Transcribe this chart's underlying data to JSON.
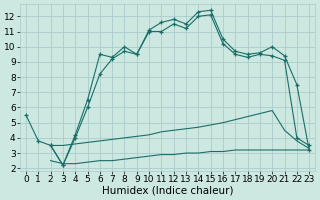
{
  "xlabel": "Humidex (Indice chaleur)",
  "bg_color": "#cce8e0",
  "grid_color": "#aacccc",
  "line_color": "#1a6e68",
  "xlim": [
    -0.5,
    23.5
  ],
  "ylim": [
    1.8,
    12.8
  ],
  "xticks": [
    0,
    1,
    2,
    3,
    4,
    5,
    6,
    7,
    8,
    9,
    10,
    11,
    12,
    13,
    14,
    15,
    16,
    17,
    18,
    19,
    20,
    21,
    22,
    23
  ],
  "yticks": [
    2,
    3,
    4,
    5,
    6,
    7,
    8,
    9,
    10,
    11,
    12
  ],
  "line_main_x": [
    0,
    1,
    2,
    3,
    4,
    5,
    6,
    7,
    8,
    9,
    10,
    11,
    12,
    13,
    14,
    15,
    16,
    17,
    18,
    19,
    20,
    21,
    22,
    23
  ],
  "line_main_y": [
    5.5,
    3.8,
    3.5,
    2.2,
    4.2,
    6.5,
    9.5,
    9.3,
    10.0,
    9.5,
    11.1,
    11.6,
    11.8,
    11.5,
    12.3,
    12.4,
    10.5,
    9.7,
    9.5,
    9.6,
    10.0,
    9.4,
    7.5,
    3.2
  ],
  "line_diag_x": [
    2,
    3,
    4,
    5,
    6,
    7,
    8,
    9,
    10,
    11,
    12,
    13,
    14,
    15,
    16,
    17,
    18,
    19,
    20,
    21,
    22,
    23
  ],
  "line_diag_y": [
    3.5,
    3.5,
    3.6,
    3.7,
    3.8,
    3.9,
    4.0,
    4.1,
    4.2,
    4.4,
    4.5,
    4.6,
    4.7,
    4.85,
    5.0,
    5.2,
    5.4,
    5.6,
    5.8,
    4.5,
    3.8,
    3.3
  ],
  "line_flat_x": [
    2,
    3,
    4,
    5,
    6,
    7,
    8,
    9,
    10,
    11,
    12,
    13,
    14,
    15,
    16,
    17,
    18,
    19,
    20,
    21,
    22,
    23
  ],
  "line_flat_y": [
    2.5,
    2.3,
    2.3,
    2.4,
    2.5,
    2.5,
    2.6,
    2.7,
    2.8,
    2.9,
    2.9,
    3.0,
    3.0,
    3.1,
    3.1,
    3.2,
    3.2,
    3.2,
    3.2,
    3.2,
    3.2,
    3.2
  ],
  "line_sec_x": [
    2,
    3,
    4,
    5,
    6,
    7,
    8,
    9,
    10,
    11,
    12,
    13,
    14,
    15,
    16,
    17,
    18,
    19,
    20,
    21,
    22,
    23
  ],
  "line_sec_y": [
    3.5,
    2.2,
    4.0,
    6.0,
    8.2,
    9.2,
    9.7,
    9.5,
    11.0,
    11.0,
    11.5,
    11.2,
    12.0,
    12.1,
    10.2,
    9.5,
    9.3,
    9.5,
    9.4,
    9.1,
    4.0,
    3.5
  ],
  "tick_fontsize": 6.5,
  "xlabel_fontsize": 7.5
}
